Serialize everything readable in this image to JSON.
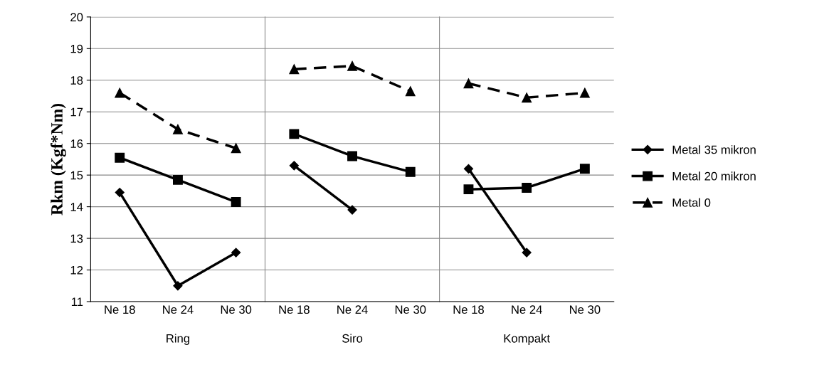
{
  "chart_data": [
    {
      "type": "line",
      "xlabel": "Ring",
      "ylabel": "Rkm (Kgf*Nm)",
      "legend": "right",
      "categories": [
        "Ne 18",
        "Ne 24",
        "Ne 30"
      ],
      "ylim": [
        11,
        20
      ],
      "yticks": [
        11,
        12,
        13,
        14,
        15,
        16,
        17,
        18,
        19,
        20
      ],
      "grid": "y",
      "series": [
        {
          "name": "Metal 35 mikron",
          "color": "#000000",
          "marker": "diamond",
          "line_style": "solid",
          "values": [
            14.45,
            11.5,
            12.55
          ]
        },
        {
          "name": "Metal 20 mikron",
          "color": "#000000",
          "marker": "square",
          "line_style": "solid",
          "values": [
            15.55,
            14.85,
            14.15
          ]
        },
        {
          "name": "Metal 0",
          "color": "#000000",
          "marker": "triangle",
          "line_style": "dashed",
          "values": [
            17.6,
            16.45,
            15.85
          ]
        }
      ]
    },
    {
      "type": "line",
      "xlabel": "Siro",
      "categories": [
        "Ne 18",
        "Ne 24",
        "Ne 30"
      ],
      "ylim": [
        11,
        20
      ],
      "yticks": [
        11,
        12,
        13,
        14,
        15,
        16,
        17,
        18,
        19,
        20
      ],
      "grid": "y",
      "tick_labels": "x",
      "series": [
        {
          "color": "#000000",
          "marker": "diamond",
          "line_style": "solid",
          "values": [
            15.3,
            13.9,
            null
          ]
        },
        {
          "color": "#000000",
          "marker": "square",
          "line_style": "solid",
          "values": [
            16.3,
            15.6,
            15.1
          ]
        },
        {
          "color": "#000000",
          "marker": "triangle",
          "line_style": "dashed",
          "values": [
            18.35,
            18.45,
            17.65
          ]
        }
      ]
    },
    {
      "type": "line",
      "xlabel": "Kompakt",
      "categories": [
        "Ne 18",
        "Ne 24",
        "Ne 30"
      ],
      "ylim": [
        11,
        20
      ],
      "yticks": [
        11,
        12,
        13,
        14,
        15,
        16,
        17,
        18,
        19,
        20
      ],
      "grid": "y",
      "tick_labels": "x",
      "series": [
        {
          "color": "#000000",
          "marker": "diamond",
          "line_style": "solid",
          "values": [
            15.2,
            12.55,
            null
          ]
        },
        {
          "color": "#000000",
          "marker": "square",
          "line_style": "solid",
          "values": [
            14.55,
            14.6,
            15.2
          ]
        },
        {
          "color": "#000000",
          "marker": "triangle",
          "line_style": "dashed",
          "values": [
            17.9,
            17.45,
            17.6
          ]
        }
      ]
    }
  ]
}
